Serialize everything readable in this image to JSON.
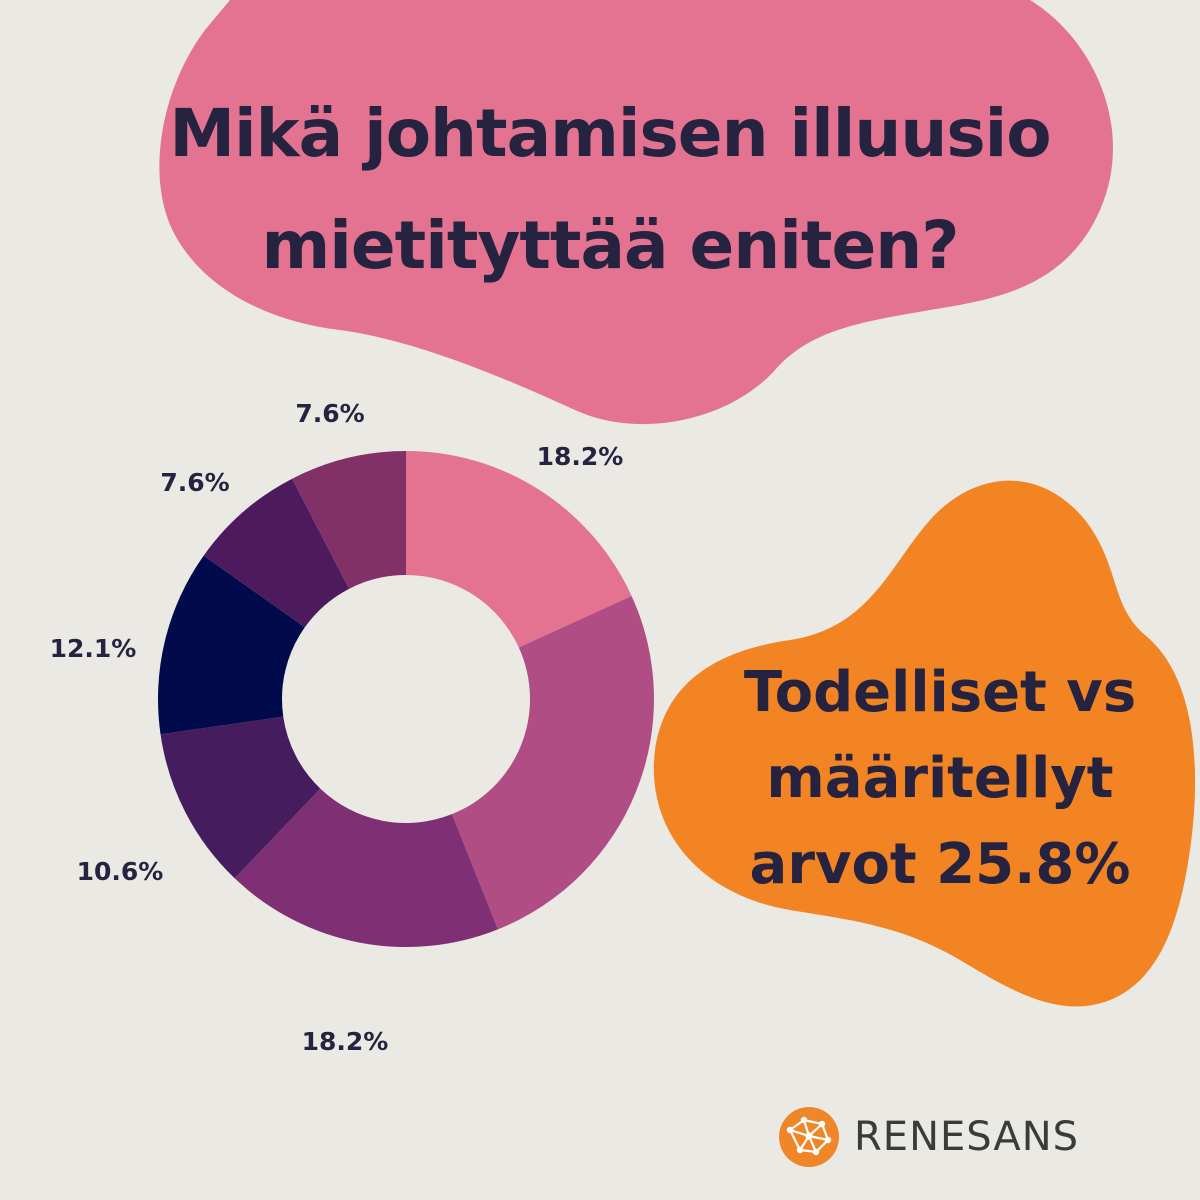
{
  "title": {
    "line1": "Mikä johtamisen illuusio",
    "line2": "mietityttää eniten?"
  },
  "callout": {
    "line1": "Todelliset vs",
    "line2": "määritellyt",
    "line3": "arvot 25.8%"
  },
  "brand": {
    "name": "RENESANS",
    "accent": "#f0862a"
  },
  "colors": {
    "background": "#ebe9e4",
    "blob_pink": "#e37391",
    "blob_orange": "#f28424",
    "text": "#25233f"
  },
  "chart_data": {
    "type": "pie",
    "hole": true,
    "slices": [
      {
        "value": 18.2,
        "label": "18.2%",
        "color": "#e37391"
      },
      {
        "value": 25.8,
        "label": "",
        "color": "#b04d85"
      },
      {
        "value": 18.2,
        "label": "18.2%",
        "color": "#7f2f74"
      },
      {
        "value": 10.6,
        "label": "10.6%",
        "color": "#451c5e"
      },
      {
        "value": 12.1,
        "label": "12.1%",
        "color": "#010b4b"
      },
      {
        "value": 7.6,
        "label": "7.6%",
        "color": "#4d1a5e"
      },
      {
        "value": 7.6,
        "label": "7.6%",
        "color": "#823068"
      }
    ]
  }
}
